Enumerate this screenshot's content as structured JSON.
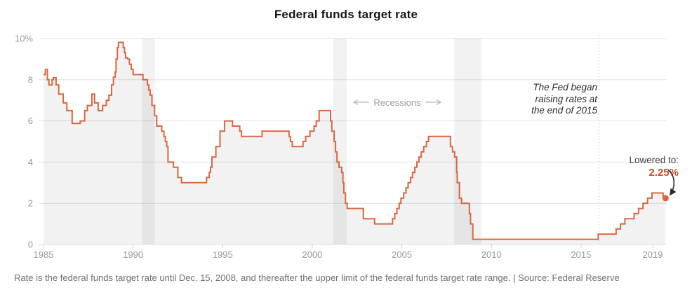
{
  "title": "Federal funds target rate",
  "footer": "Rate is the federal funds target rate until Dec. 15, 2008, and thereafter the upper limit of the federal funds target rate range. | Source: Federal Reserve",
  "annotations": {
    "recessions_label": "Recessions",
    "fed_note_line1": "The Fed began",
    "fed_note_line2": "raising rates at",
    "fed_note_line3": "the end of 2015",
    "lowered_label": "Lowered to:",
    "lowered_value": "2.25%"
  },
  "colors": {
    "line": "#d9673f",
    "end_dot": "#d9673f",
    "lowered_value_text": "#c94d28",
    "fill": "rgba(0,0,0,0.052)",
    "recession_band": "rgba(0,0,0,0.052)",
    "gridline": "#e3e3e3",
    "axis_text": "#999999",
    "tick_mark": "#cccccc",
    "dashed_line": "#c4c4c4",
    "annotation_arrow": "#b8b8b8",
    "curve_arrow": "#2b2b2b"
  },
  "chart_data": {
    "type": "line",
    "step": true,
    "title": "Federal funds target rate",
    "ylabel": "percent",
    "x_ticks": [
      1985,
      1990,
      1995,
      2000,
      2005,
      2010,
      2015,
      2019
    ],
    "y_ticks": [
      0,
      2,
      4,
      6,
      8,
      10
    ],
    "y_tick_labels": [
      "0",
      "2",
      "4",
      "6",
      "8",
      "10%"
    ],
    "x_range": [
      1984.75,
      2019.8
    ],
    "y_range": [
      0,
      10
    ],
    "grid": true,
    "recession_spans": [
      [
        1990.5,
        1991.2
      ],
      [
        2001.17,
        2001.92
      ],
      [
        2007.92,
        2009.45
      ]
    ],
    "dashed_marker_x": 2016.0,
    "end_point": {
      "x": 2019.72,
      "y": 2.25,
      "label": "2.25%"
    },
    "series": [
      {
        "name": "Federal funds target rate (upper limit of range after Dec. 15, 2008)",
        "points": [
          [
            1985.0,
            8.25
          ],
          [
            1985.1,
            8.5
          ],
          [
            1985.22,
            8.0
          ],
          [
            1985.3,
            7.75
          ],
          [
            1985.48,
            8.0
          ],
          [
            1985.55,
            8.1
          ],
          [
            1985.7,
            7.75
          ],
          [
            1985.85,
            7.3
          ],
          [
            1986.1,
            6.875
          ],
          [
            1986.3,
            6.5
          ],
          [
            1986.6,
            5.875
          ],
          [
            1987.05,
            6.0
          ],
          [
            1987.3,
            6.5
          ],
          [
            1987.45,
            6.75
          ],
          [
            1987.7,
            7.3
          ],
          [
            1987.85,
            6.875
          ],
          [
            1988.05,
            6.5
          ],
          [
            1988.3,
            6.75
          ],
          [
            1988.5,
            7.0
          ],
          [
            1988.65,
            7.25
          ],
          [
            1988.8,
            7.75
          ],
          [
            1988.9,
            8.125
          ],
          [
            1989.0,
            8.375
          ],
          [
            1989.05,
            9.0
          ],
          [
            1989.12,
            9.5625
          ],
          [
            1989.18,
            9.8125
          ],
          [
            1989.45,
            9.5625
          ],
          [
            1989.52,
            9.3125
          ],
          [
            1989.58,
            9.0625
          ],
          [
            1989.7,
            9.0
          ],
          [
            1989.8,
            8.75
          ],
          [
            1989.9,
            8.5
          ],
          [
            1990.0,
            8.25
          ],
          [
            1990.55,
            8.0
          ],
          [
            1990.8,
            7.75
          ],
          [
            1990.88,
            7.5
          ],
          [
            1990.95,
            7.25
          ],
          [
            1991.05,
            6.75
          ],
          [
            1991.2,
            6.25
          ],
          [
            1991.32,
            5.75
          ],
          [
            1991.6,
            5.5
          ],
          [
            1991.72,
            5.25
          ],
          [
            1991.8,
            5.0
          ],
          [
            1991.88,
            4.75
          ],
          [
            1991.95,
            4.0
          ],
          [
            1992.25,
            3.75
          ],
          [
            1992.5,
            3.25
          ],
          [
            1992.7,
            3.0
          ],
          [
            1994.1,
            3.25
          ],
          [
            1994.25,
            3.5
          ],
          [
            1994.32,
            3.75
          ],
          [
            1994.4,
            4.25
          ],
          [
            1994.62,
            4.75
          ],
          [
            1994.85,
            5.5
          ],
          [
            1995.1,
            6.0
          ],
          [
            1995.55,
            5.75
          ],
          [
            1995.95,
            5.5
          ],
          [
            1996.05,
            5.25
          ],
          [
            1997.2,
            5.5
          ],
          [
            1998.7,
            5.25
          ],
          [
            1998.78,
            5.0
          ],
          [
            1998.88,
            4.75
          ],
          [
            1999.48,
            5.0
          ],
          [
            1999.63,
            5.25
          ],
          [
            1999.87,
            5.5
          ],
          [
            2000.1,
            5.75
          ],
          [
            2000.22,
            6.0
          ],
          [
            2000.38,
            6.5
          ],
          [
            2001.02,
            6.0
          ],
          [
            2001.09,
            5.5
          ],
          [
            2001.22,
            5.0
          ],
          [
            2001.3,
            4.5
          ],
          [
            2001.38,
            4.0
          ],
          [
            2001.49,
            3.75
          ],
          [
            2001.64,
            3.5
          ],
          [
            2001.71,
            3.0
          ],
          [
            2001.76,
            2.5
          ],
          [
            2001.85,
            2.0
          ],
          [
            2001.95,
            1.75
          ],
          [
            2002.85,
            1.25
          ],
          [
            2003.48,
            1.0
          ],
          [
            2004.48,
            1.25
          ],
          [
            2004.6,
            1.5
          ],
          [
            2004.72,
            1.75
          ],
          [
            2004.85,
            2.0
          ],
          [
            2004.95,
            2.25
          ],
          [
            2005.1,
            2.5
          ],
          [
            2005.23,
            2.75
          ],
          [
            2005.35,
            3.0
          ],
          [
            2005.49,
            3.25
          ],
          [
            2005.6,
            3.5
          ],
          [
            2005.72,
            3.75
          ],
          [
            2005.84,
            4.0
          ],
          [
            2005.95,
            4.25
          ],
          [
            2006.08,
            4.5
          ],
          [
            2006.22,
            4.75
          ],
          [
            2006.37,
            5.0
          ],
          [
            2006.49,
            5.25
          ],
          [
            2007.71,
            4.75
          ],
          [
            2007.83,
            4.5
          ],
          [
            2007.94,
            4.25
          ],
          [
            2008.06,
            3.5
          ],
          [
            2008.09,
            3.0
          ],
          [
            2008.21,
            2.25
          ],
          [
            2008.33,
            2.0
          ],
          [
            2008.77,
            1.5
          ],
          [
            2008.83,
            1.0
          ],
          [
            2008.96,
            0.25
          ],
          [
            2015.96,
            0.5
          ],
          [
            2016.96,
            0.75
          ],
          [
            2017.2,
            1.0
          ],
          [
            2017.45,
            1.25
          ],
          [
            2017.96,
            1.5
          ],
          [
            2018.21,
            1.75
          ],
          [
            2018.46,
            2.0
          ],
          [
            2018.71,
            2.25
          ],
          [
            2018.96,
            2.5
          ],
          [
            2019.58,
            2.25
          ]
        ]
      }
    ]
  }
}
